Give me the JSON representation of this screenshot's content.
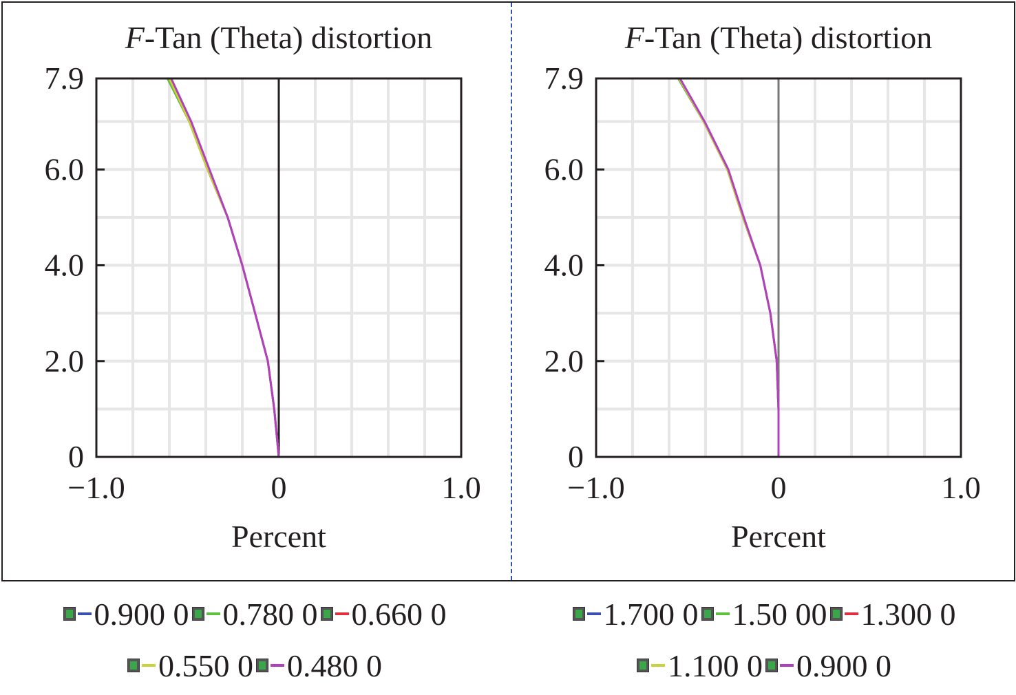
{
  "chart_data": [
    {
      "type": "line",
      "title_italic": "F",
      "title": "-Tan (Theta) distortion",
      "xlabel": "Percent",
      "ylabel": "",
      "xlim": [
        -1.0,
        1.0
      ],
      "ylim": [
        0,
        7.9
      ],
      "xticks": [
        "−1.0",
        "0",
        "1.0"
      ],
      "yticks": [
        "0",
        "2.0",
        "4.0",
        "6.0",
        "7.9"
      ],
      "grid": true,
      "legend_position": "bottom",
      "y": [
        0,
        1,
        2,
        3,
        4,
        5,
        6,
        7,
        7.9
      ],
      "series": [
        {
          "name": "0.900 0",
          "color": "#3a4fb0",
          "x": [
            0,
            -0.025,
            -0.06,
            -0.13,
            -0.2,
            -0.28,
            -0.39,
            -0.49,
            -0.61
          ]
        },
        {
          "name": "0.780 0",
          "color": "#5cc040",
          "x": [
            0,
            -0.025,
            -0.06,
            -0.13,
            -0.2,
            -0.28,
            -0.39,
            -0.49,
            -0.61
          ]
        },
        {
          "name": "0.660 0",
          "color": "#e0303f",
          "x": [
            0,
            -0.025,
            -0.06,
            -0.13,
            -0.2,
            -0.28,
            -0.39,
            -0.49,
            -0.6
          ]
        },
        {
          "name": "0.550 0",
          "color": "#c8d43a",
          "x": [
            0,
            -0.025,
            -0.06,
            -0.13,
            -0.2,
            -0.28,
            -0.39,
            -0.49,
            -0.6
          ]
        },
        {
          "name": "0.480 0",
          "color": "#b040c0",
          "x": [
            0,
            -0.025,
            -0.06,
            -0.13,
            -0.2,
            -0.28,
            -0.38,
            -0.48,
            -0.59
          ]
        }
      ]
    },
    {
      "type": "line",
      "title_italic": "F",
      "title": "-Tan (Theta) distortion",
      "xlabel": "Percent",
      "ylabel": "",
      "xlim": [
        -1.0,
        1.0
      ],
      "ylim": [
        0,
        7.9
      ],
      "xticks": [
        "−1.0",
        "0",
        "1.0"
      ],
      "yticks": [
        "0",
        "2.0",
        "4.0",
        "6.0",
        "7.9"
      ],
      "grid": true,
      "legend_position": "bottom",
      "y": [
        0,
        1,
        2,
        3,
        4,
        5,
        6,
        7,
        7.9
      ],
      "series": [
        {
          "name": "1.700 0",
          "color": "#3a4fb0",
          "x": [
            0,
            0,
            -0.01,
            -0.045,
            -0.1,
            -0.195,
            -0.28,
            -0.41,
            -0.55
          ]
        },
        {
          "name": "1.50 00",
          "color": "#5cc040",
          "x": [
            0,
            0,
            -0.01,
            -0.045,
            -0.1,
            -0.195,
            -0.28,
            -0.41,
            -0.55
          ]
        },
        {
          "name": "1.300 0",
          "color": "#e0303f",
          "x": [
            0,
            0,
            -0.01,
            -0.045,
            -0.1,
            -0.195,
            -0.28,
            -0.41,
            -0.545
          ]
        },
        {
          "name": "1.100 0",
          "color": "#c8d43a",
          "x": [
            0,
            0,
            -0.01,
            -0.045,
            -0.1,
            -0.195,
            -0.28,
            -0.41,
            -0.545
          ]
        },
        {
          "name": "0.900 0",
          "color": "#b040c0",
          "x": [
            0,
            0,
            -0.01,
            -0.045,
            -0.1,
            -0.19,
            -0.275,
            -0.405,
            -0.54
          ]
        }
      ]
    }
  ]
}
